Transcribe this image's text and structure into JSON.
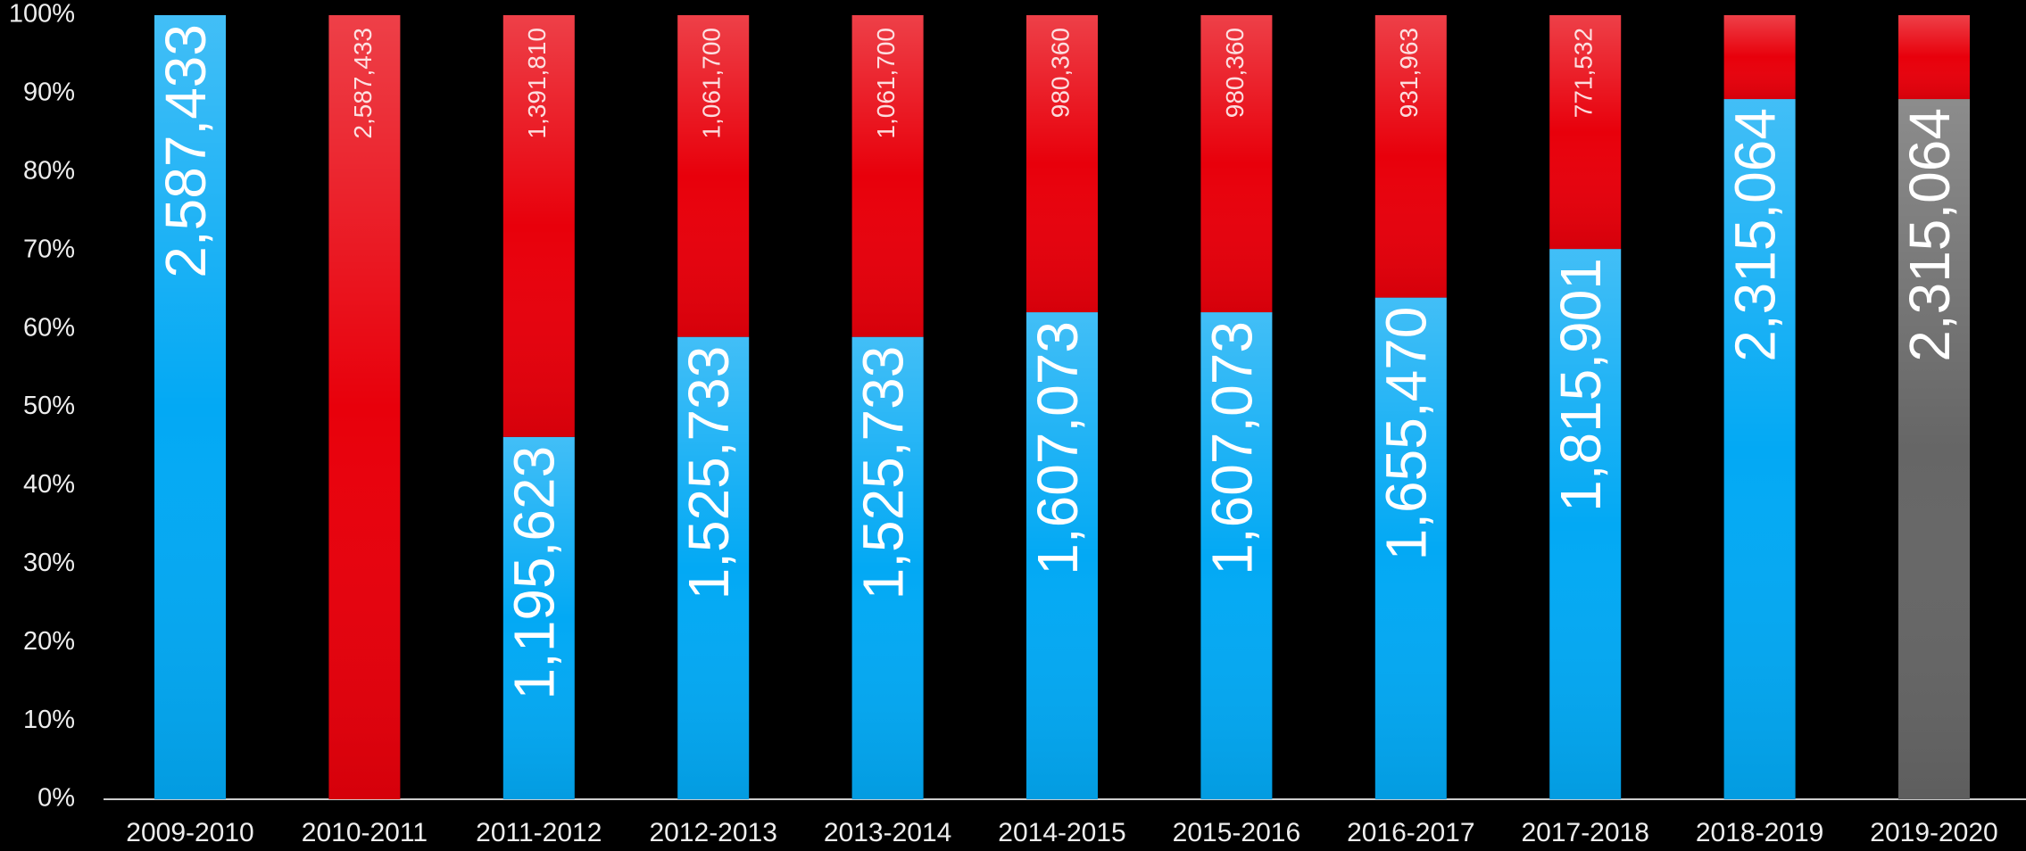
{
  "chart_data": {
    "type": "stacked_bar_percent",
    "categories": [
      "2009-2010",
      "2010-2011",
      "2011-2012",
      "2012-2013",
      "2013-2014",
      "2014-2015",
      "2015-2016",
      "2016-2017",
      "2017-2018",
      "2018-2019",
      "2019-2020"
    ],
    "series": [
      {
        "color": "#03a9f4",
        "colors": [
          "#03a9f4",
          "#03a9f4",
          "#03a9f4",
          "#03a9f4",
          "#03a9f4",
          "#03a9f4",
          "#03a9f4",
          "#03a9f4",
          "#03a9f4",
          "#03a9f4",
          "#666666"
        ],
        "values": [
          2587433,
          0,
          1195623,
          1525733,
          1525733,
          1607073,
          1607073,
          1655470,
          1815901,
          2315064,
          2315064
        ],
        "value_labels": [
          "2,587,433",
          null,
          "1,195,623",
          "1,525,733",
          "1,525,733",
          "1,607,073",
          "1,607,073",
          "1,655,470",
          "1,815,901",
          "2,315,064",
          "2,315,064"
        ]
      },
      {
        "color": "#e8000b",
        "values": [
          0,
          2587433,
          1391810,
          1061700,
          1061700,
          980360,
          980360,
          931963,
          771532,
          277400,
          277400
        ],
        "value_labels": [
          null,
          "2,587,433",
          "1,391,810",
          "1,061,700",
          "1,061,700",
          "980,360",
          "980,360",
          "931,963",
          "771,532",
          null,
          null
        ]
      }
    ],
    "ylim": [
      0,
      100
    ],
    "yticks": [
      {
        "value": 0,
        "label": "0%"
      },
      {
        "value": 10,
        "label": "10%"
      },
      {
        "value": 20,
        "label": "20%"
      },
      {
        "value": 30,
        "label": "30%"
      },
      {
        "value": 40,
        "label": "40%"
      },
      {
        "value": 50,
        "label": "50%"
      },
      {
        "value": 60,
        "label": "60%"
      },
      {
        "value": 70,
        "label": "70%"
      },
      {
        "value": 80,
        "label": "80%"
      },
      {
        "value": 90,
        "label": "90%"
      },
      {
        "value": 100,
        "label": "100%"
      }
    ]
  }
}
